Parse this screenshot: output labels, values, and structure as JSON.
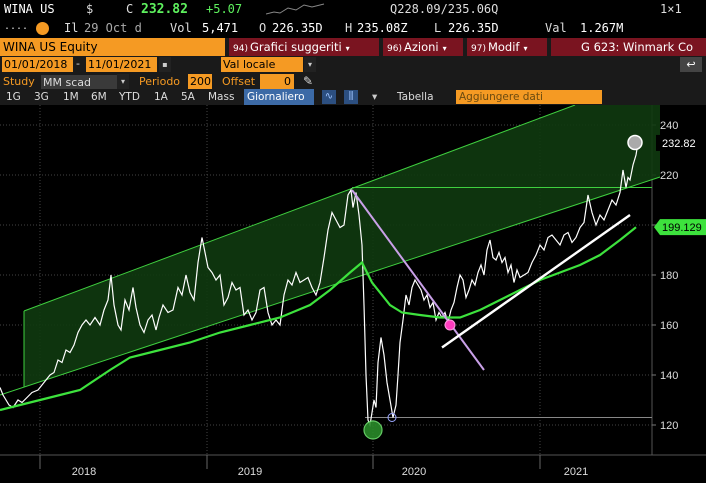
{
  "quote": {
    "ticker": "WINA US",
    "currency_symbol": "$",
    "close_label": "C",
    "close": "232.82",
    "change": "+5.07",
    "bid_ask": "Q228.09/235.06Q",
    "lot": "1×1"
  },
  "stats": {
    "time_label": "Il",
    "date": "29 Oct d",
    "vol_label": "Vol",
    "volume": "5,471",
    "open_label": "O",
    "open": "226.35D",
    "high_label": "H",
    "high": "235.08Z",
    "low_label": "L",
    "low": "226.35D",
    "val_label": "Val",
    "value": "1.267M"
  },
  "menu": {
    "security": "WINA US Equity",
    "suggested_charts": {
      "num": "94)",
      "label": "Grafici suggeriti"
    },
    "actions": {
      "num": "96)",
      "label": "Azioni"
    },
    "edit": {
      "num": "97)",
      "label": "Modif"
    },
    "chart_name": "G 623: Winmark Co"
  },
  "range": {
    "start_date": "01/01/2018",
    "end_date": "11/01/2021",
    "currency": "Val locale"
  },
  "study": {
    "study_label": "Study",
    "study_value": "MM scad",
    "period_label": "Periodo",
    "period_value": "200",
    "offset_label": "Offset",
    "offset_value": "0"
  },
  "periods": {
    "items": [
      "1G",
      "3G",
      "1M",
      "6M",
      "YTD",
      "1A",
      "5A",
      "Mass"
    ],
    "active": "Giornaliero",
    "table": "Tabella",
    "add_data_placeholder": "Aggiungere dati"
  },
  "chart_data": {
    "type": "line",
    "x_ticks": [
      "2018",
      "2019",
      "2020",
      "2021"
    ],
    "y_ticks": [
      120,
      140,
      160,
      180,
      200,
      220,
      240
    ],
    "ylim": [
      108,
      248
    ],
    "last_price_label": "232.82",
    "ma_label": "199.129",
    "series": [
      {
        "values": [
          [
            0,
            135
          ],
          [
            3,
            132
          ],
          [
            6,
            130
          ],
          [
            9,
            128
          ],
          [
            13,
            127
          ],
          [
            18,
            130
          ],
          [
            22,
            129
          ],
          [
            27,
            131
          ],
          [
            32,
            133
          ],
          [
            38,
            134
          ],
          [
            44,
            137
          ],
          [
            50,
            140
          ],
          [
            54,
            141
          ],
          [
            58,
            146
          ],
          [
            62,
            145
          ],
          [
            66,
            150
          ],
          [
            70,
            149
          ],
          [
            74,
            152
          ],
          [
            78,
            157
          ],
          [
            82,
            160
          ],
          [
            86,
            162
          ],
          [
            90,
            160
          ],
          [
            95,
            163
          ],
          [
            100,
            160
          ],
          [
            104,
            166
          ],
          [
            108,
            170
          ],
          [
            111,
            180
          ],
          [
            114,
            168
          ],
          [
            118,
            160
          ],
          [
            121,
            158
          ],
          [
            125,
            170
          ],
          [
            129,
            166
          ],
          [
            133,
            175
          ],
          [
            136,
            167
          ],
          [
            140,
            160
          ],
          [
            144,
            157
          ],
          [
            148,
            162
          ],
          [
            152,
            164
          ],
          [
            156,
            158
          ],
          [
            159,
            163
          ],
          [
            163,
            168
          ],
          [
            168,
            165
          ],
          [
            173,
            166
          ],
          [
            178,
            175
          ],
          [
            182,
            172
          ],
          [
            186,
            180
          ],
          [
            190,
            173
          ],
          [
            194,
            170
          ],
          [
            198,
            185
          ],
          [
            202,
            195
          ],
          [
            205,
            189
          ],
          [
            208,
            183
          ],
          [
            212,
            181
          ],
          [
            216,
            178
          ],
          [
            220,
            180
          ],
          [
            224,
            168
          ],
          [
            228,
            171
          ],
          [
            232,
            177
          ],
          [
            236,
            174
          ],
          [
            240,
            175
          ],
          [
            244,
            164
          ],
          [
            248,
            166
          ],
          [
            252,
            162
          ],
          [
            256,
            165
          ],
          [
            260,
            174
          ],
          [
            264,
            175
          ],
          [
            268,
            165
          ],
          [
            272,
            160
          ],
          [
            276,
            162
          ],
          [
            280,
            160
          ],
          [
            284,
            172
          ],
          [
            288,
            178
          ],
          [
            292,
            176
          ],
          [
            296,
            181
          ],
          [
            300,
            177
          ],
          [
            304,
            178
          ],
          [
            308,
            179
          ],
          [
            312,
            175
          ],
          [
            316,
            172
          ],
          [
            320,
            177
          ],
          [
            324,
            187
          ],
          [
            328,
            198
          ],
          [
            332,
            205
          ],
          [
            336,
            202
          ],
          [
            340,
            199
          ],
          [
            344,
            200
          ],
          [
            348,
            212
          ],
          [
            351,
            214
          ],
          [
            353,
            207
          ],
          [
            356,
            213
          ],
          [
            359,
            204
          ],
          [
            362,
            192
          ],
          [
            364,
            168
          ],
          [
            366,
            140
          ],
          [
            368,
            122
          ],
          [
            370,
            120
          ],
          [
            372,
            125
          ],
          [
            374,
            130
          ],
          [
            376,
            127
          ],
          [
            378,
            145
          ],
          [
            381,
            155
          ],
          [
            384,
            148
          ],
          [
            387,
            137
          ],
          [
            390,
            130
          ],
          [
            393,
            123
          ],
          [
            396,
            128
          ],
          [
            398,
            140
          ],
          [
            400,
            153
          ],
          [
            403,
            162
          ],
          [
            406,
            172
          ],
          [
            409,
            168
          ],
          [
            412,
            175
          ],
          [
            415,
            178
          ],
          [
            418,
            176
          ],
          [
            421,
            174
          ],
          [
            424,
            170
          ],
          [
            427,
            172
          ],
          [
            430,
            167
          ],
          [
            433,
            169
          ],
          [
            436,
            162
          ],
          [
            439,
            165
          ],
          [
            442,
            163
          ],
          [
            445,
            165
          ],
          [
            448,
            161
          ],
          [
            451,
            166
          ],
          [
            454,
            169
          ],
          [
            457,
            175
          ],
          [
            460,
            180
          ],
          [
            463,
            178
          ],
          [
            466,
            171
          ],
          [
            469,
            174
          ],
          [
            472,
            178
          ],
          [
            475,
            176
          ],
          [
            478,
            181
          ],
          [
            481,
            184
          ],
          [
            484,
            180
          ],
          [
            487,
            190
          ],
          [
            490,
            194
          ],
          [
            493,
            187
          ],
          [
            496,
            186
          ],
          [
            499,
            189
          ],
          [
            502,
            185
          ],
          [
            505,
            187
          ],
          [
            508,
            181
          ],
          [
            511,
            184
          ],
          [
            514,
            177
          ],
          [
            517,
            182
          ],
          [
            520,
            179
          ],
          [
            524,
            180
          ],
          [
            528,
            181
          ],
          [
            532,
            185
          ],
          [
            536,
            188
          ],
          [
            540,
            192
          ],
          [
            544,
            190
          ],
          [
            548,
            195
          ],
          [
            552,
            196
          ],
          [
            556,
            194
          ],
          [
            560,
            192
          ],
          [
            564,
            196
          ],
          [
            568,
            197
          ],
          [
            572,
            193
          ],
          [
            576,
            195
          ],
          [
            580,
            199
          ],
          [
            584,
            201
          ],
          [
            588,
            212
          ],
          [
            592,
            205
          ],
          [
            596,
            200
          ],
          [
            600,
            204
          ],
          [
            604,
            202
          ],
          [
            608,
            206
          ],
          [
            612,
            210
          ],
          [
            616,
            208
          ],
          [
            620,
            213
          ],
          [
            623,
            222
          ],
          [
            626,
            215
          ],
          [
            628,
            219
          ],
          [
            630,
            218
          ],
          [
            633,
            224
          ],
          [
            636,
            228
          ],
          [
            638,
            232.82
          ]
        ]
      },
      {
        "values": [
          [
            0,
            126
          ],
          [
            20,
            128
          ],
          [
            50,
            131
          ],
          [
            80,
            134
          ],
          [
            110,
            142
          ],
          [
            130,
            147
          ],
          [
            160,
            150
          ],
          [
            190,
            153
          ],
          [
            220,
            157
          ],
          [
            250,
            160
          ],
          [
            280,
            163
          ],
          [
            310,
            168
          ],
          [
            330,
            174
          ],
          [
            350,
            181
          ],
          [
            362,
            185
          ],
          [
            372,
            177
          ],
          [
            390,
            168
          ],
          [
            402,
            165
          ],
          [
            420,
            164
          ],
          [
            440,
            163
          ],
          [
            460,
            163
          ],
          [
            480,
            166
          ],
          [
            500,
            170
          ],
          [
            520,
            174
          ],
          [
            540,
            178
          ],
          [
            560,
            181
          ],
          [
            580,
            184
          ],
          [
            600,
            188
          ],
          [
            620,
            194
          ],
          [
            636,
            199.129
          ]
        ]
      }
    ]
  }
}
